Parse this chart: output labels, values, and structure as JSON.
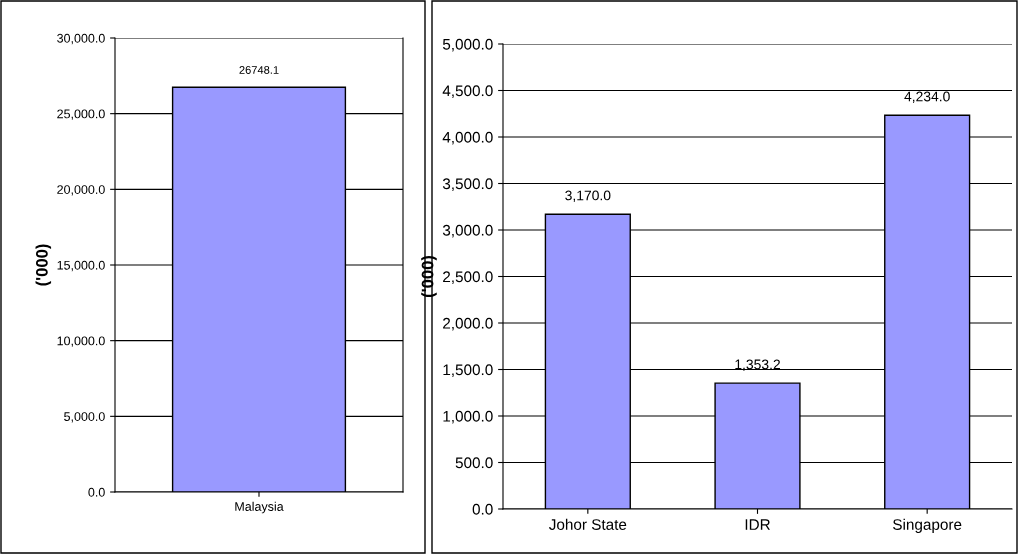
{
  "chart_data": [
    {
      "type": "bar",
      "categories": [
        "Malaysia"
      ],
      "values": [
        26748.1
      ],
      "value_labels": [
        "26748.1"
      ],
      "color": "#9999ff",
      "ylabel": "('000)",
      "ylim": [
        0,
        30000
      ],
      "yticks": [
        {
          "value": 0,
          "label": "0.0"
        },
        {
          "value": 5000,
          "label": "5,000.0"
        },
        {
          "value": 10000,
          "label": "10,000.0"
        },
        {
          "value": 15000,
          "label": "15,000.0"
        },
        {
          "value": 20000,
          "label": "20,000.0"
        },
        {
          "value": 25000,
          "label": "25,000.0"
        },
        {
          "value": 30000,
          "label": "30,000.0"
        }
      ],
      "grid": "y"
    },
    {
      "type": "bar",
      "categories": [
        "Johor State",
        "IDR",
        "Singapore"
      ],
      "values": [
        3170.0,
        1353.2,
        4234.0
      ],
      "value_labels": [
        "3,170.0",
        "1,353.2",
        "4,234.0"
      ],
      "color": "#9999ff",
      "ylabel": "('000)",
      "ylim": [
        0,
        5000
      ],
      "yticks": [
        {
          "value": 0,
          "label": "0.0"
        },
        {
          "value": 500,
          "label": "500.0"
        },
        {
          "value": 1000,
          "label": "1,000.0"
        },
        {
          "value": 1500,
          "label": "1,500.0"
        },
        {
          "value": 2000,
          "label": "2,000.0"
        },
        {
          "value": 2500,
          "label": "2,500.0"
        },
        {
          "value": 3000,
          "label": "3,000.0"
        },
        {
          "value": 3500,
          "label": "3,500.0"
        },
        {
          "value": 4000,
          "label": "4,000.0"
        },
        {
          "value": 4500,
          "label": "4,500.0"
        },
        {
          "value": 5000,
          "label": "5,000.0"
        }
      ],
      "grid": "y"
    }
  ]
}
